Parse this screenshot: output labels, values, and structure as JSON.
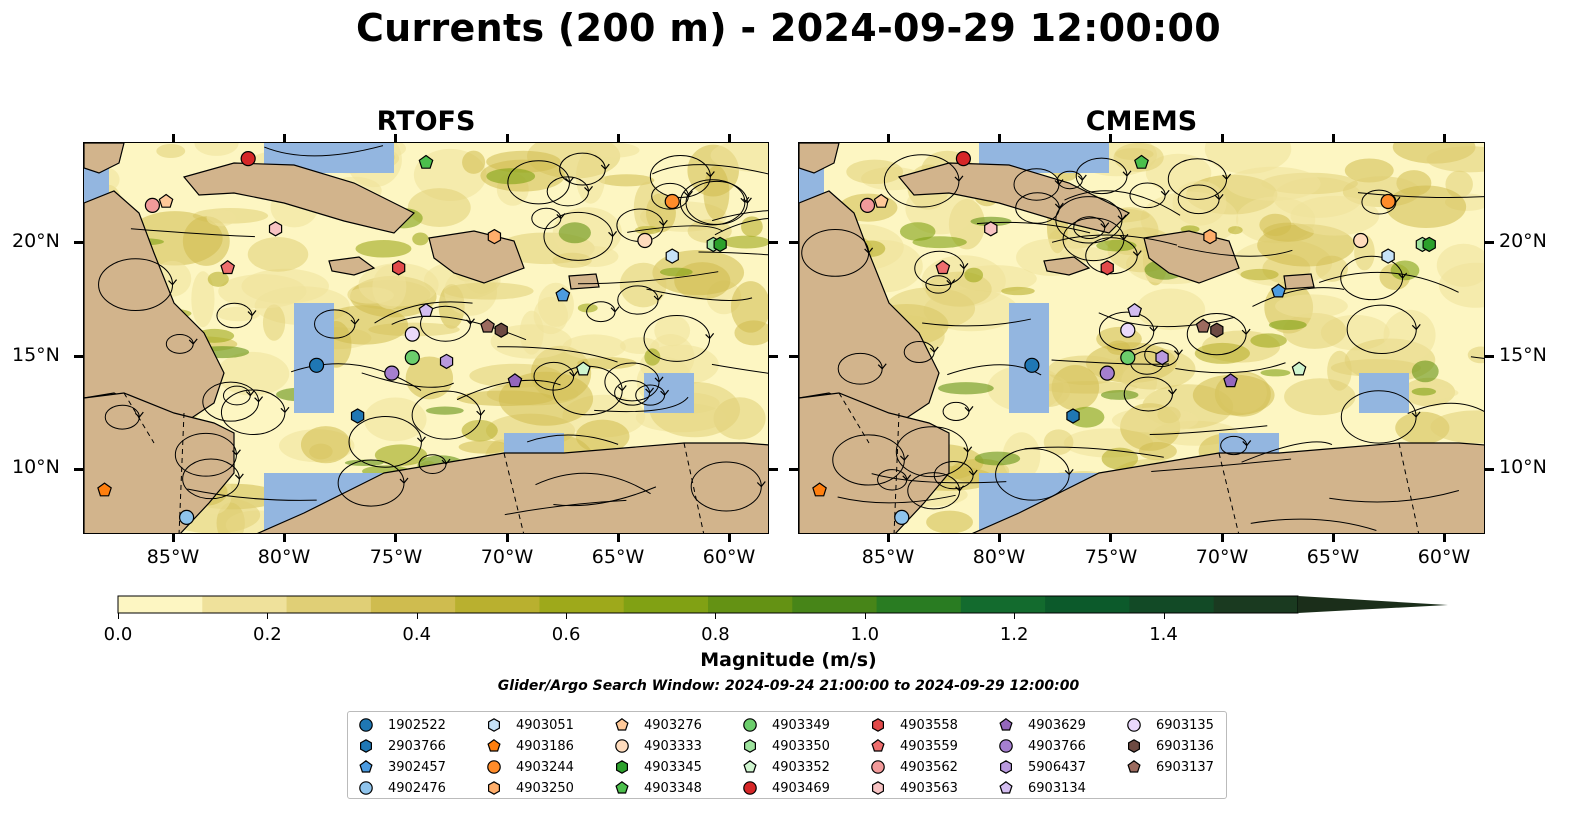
{
  "title": "Currents (200 m) - 2024-09-29 12:00:00",
  "panels": [
    {
      "title": "RTOFS"
    },
    {
      "title": "CMEMS"
    }
  ],
  "axes": {
    "lat_ticks": [
      "20°N",
      "15°N",
      "10°N"
    ],
    "lon_ticks": [
      "85°W",
      "80°W",
      "75°W",
      "70°W",
      "65°W",
      "60°W"
    ]
  },
  "colorbar": {
    "label": "Magnitude (m/s)",
    "ticks": [
      "0.0",
      "0.2",
      "0.4",
      "0.6",
      "0.8",
      "1.0",
      "1.2",
      "1.4"
    ],
    "range": [
      0.0,
      1.6
    ],
    "extend": "max",
    "colors": [
      "#fdf6c2",
      "#efe19b",
      "#e0cf76",
      "#cfbc4f",
      "#b9b02f",
      "#9ea91b",
      "#81a114",
      "#649214",
      "#478518",
      "#297c22",
      "#136b2e",
      "#0c5a2b",
      "#124a26",
      "#1a3a20",
      "#1b2e1a"
    ]
  },
  "search_window": "Glider/Argo Search Window: 2024-09-24 21:00:00 to 2024-09-29 12:00:00",
  "legend": [
    {
      "id": "1902522",
      "color": "#1f77b4",
      "marker": "circle"
    },
    {
      "id": "2903766",
      "color": "#1f77b4",
      "marker": "hexagon"
    },
    {
      "id": "3902457",
      "color": "#4c9be0",
      "marker": "pentagon"
    },
    {
      "id": "4902476",
      "color": "#8fc4ec",
      "marker": "circle"
    },
    {
      "id": "4903051",
      "color": "#c6e2f7",
      "marker": "hexagon"
    },
    {
      "id": "4903186",
      "color": "#ff7f0e",
      "marker": "pentagon"
    },
    {
      "id": "4903244",
      "color": "#ff8c2a",
      "marker": "circle"
    },
    {
      "id": "4903250",
      "color": "#ffae6b",
      "marker": "hexagon"
    },
    {
      "id": "4903276",
      "color": "#ffc999",
      "marker": "pentagon"
    },
    {
      "id": "4903333",
      "color": "#ffdcbd",
      "marker": "circle"
    },
    {
      "id": "4903345",
      "color": "#2ca02c",
      "marker": "hexagon"
    },
    {
      "id": "4903348",
      "color": "#4cbf4c",
      "marker": "pentagon"
    },
    {
      "id": "4903349",
      "color": "#6cce6c",
      "marker": "circle"
    },
    {
      "id": "4903350",
      "color": "#9ee39e",
      "marker": "hexagon"
    },
    {
      "id": "4903352",
      "color": "#cff5cf",
      "marker": "pentagon"
    },
    {
      "id": "4903469",
      "color": "#d62728",
      "marker": "circle"
    },
    {
      "id": "4903558",
      "color": "#e24a4a",
      "marker": "hexagon"
    },
    {
      "id": "4903559",
      "color": "#ee6e6e",
      "marker": "pentagon"
    },
    {
      "id": "4903562",
      "color": "#f29a9a",
      "marker": "circle"
    },
    {
      "id": "4903563",
      "color": "#f8c3c3",
      "marker": "hexagon"
    },
    {
      "id": "4903629",
      "color": "#9467bd",
      "marker": "pentagon"
    },
    {
      "id": "4903766",
      "color": "#a57fcf",
      "marker": "circle"
    },
    {
      "id": "5906437",
      "color": "#b99ade",
      "marker": "hexagon"
    },
    {
      "id": "6903134",
      "color": "#d3bdf0",
      "marker": "pentagon"
    },
    {
      "id": "6903135",
      "color": "#ead9fb",
      "marker": "circle"
    },
    {
      "id": "6903136",
      "color": "#6d4a42",
      "marker": "hexagon"
    },
    {
      "id": "6903137",
      "color": "#9c6b5f",
      "marker": "pentagon"
    }
  ],
  "colors": {
    "land": "#d2b48c",
    "ocean_shallow": "#93b6e0",
    "river": "#9cb6d6"
  }
}
